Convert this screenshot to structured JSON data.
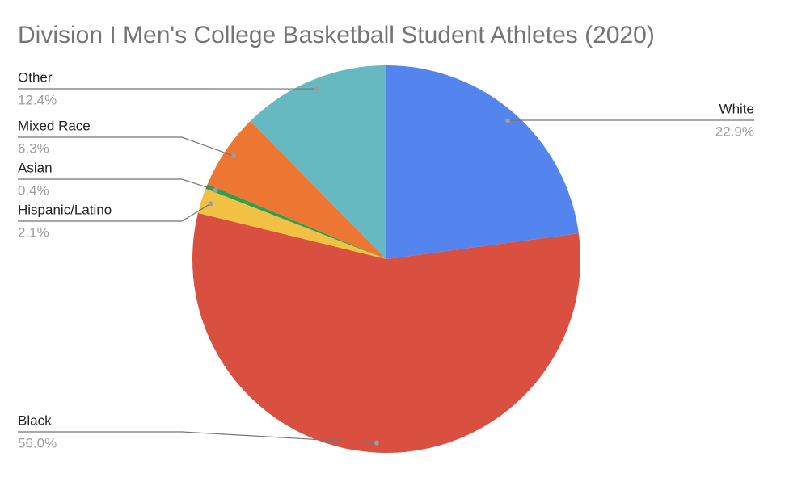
{
  "chart_data": {
    "type": "pie",
    "title": "Division I Men's College Basketball Student Athletes (2020)",
    "categories": [
      "White",
      "Black",
      "Hispanic/Latino",
      "Asian",
      "Mixed Race",
      "Other"
    ],
    "values": [
      22.9,
      56.0,
      2.1,
      0.4,
      6.3,
      12.4
    ],
    "value_labels": [
      "22.9%",
      "56.0%",
      "2.1%",
      "0.4%",
      "6.3%",
      "12.4%"
    ],
    "colors": [
      "#5484ed",
      "#d95040",
      "#f2c042",
      "#2e9e50",
      "#ec7632",
      "#67b9c1"
    ]
  }
}
